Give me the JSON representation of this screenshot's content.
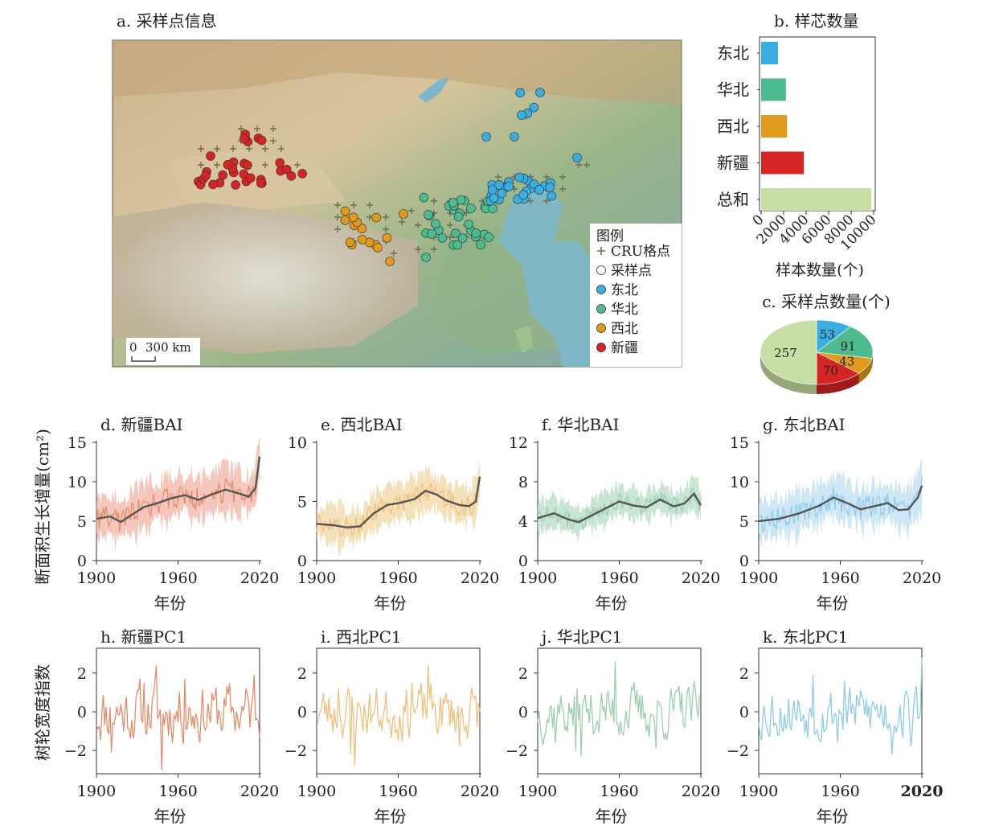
{
  "colors": {
    "ne": "#3aaee0",
    "nc": "#4dbb8e",
    "nw": "#e09a1c",
    "xj": "#d42424",
    "total": "#c7dfa4",
    "cru": "#6e6e52",
    "xj_light": "#f2b3a6",
    "nw_light": "#f2d7a2",
    "nc_light": "#b7dcc6",
    "ne_light": "#bfdff2",
    "xj_mid": "#e38d6a",
    "nw_mid": "#edc17e",
    "nc_mid": "#9ccfae",
    "ne_mid": "#8ecbe8",
    "mean": "#555555"
  },
  "map": {
    "title": "a. 采样点信息",
    "legend_title": "图例",
    "legend_items": [
      {
        "label": "CRU格点",
        "icon": "plus-icon",
        "color": "#6e6e52"
      },
      {
        "label": "采样点",
        "icon": "open-circle-icon",
        "color": "#ffffff"
      },
      {
        "label": "东北",
        "icon": "circle-icon",
        "color": "#3aaee0"
      },
      {
        "label": "华北",
        "icon": "circle-icon",
        "color": "#4dbb8e"
      },
      {
        "label": "西北",
        "icon": "circle-icon",
        "color": "#e09a1c"
      },
      {
        "label": "新疆",
        "icon": "circle-icon",
        "color": "#d42424"
      }
    ],
    "scale_bar": {
      "zero": "0",
      "label": "300 km"
    }
  },
  "chart_data": [
    {
      "type": "bar",
      "orientation": "horizontal",
      "title": "b. 样芯数量",
      "categories": [
        "东北",
        "华北",
        "西北",
        "新疆",
        "总和"
      ],
      "values": [
        1500,
        2200,
        2300,
        3800,
        9800
      ],
      "xlabel": "样本数量(个)",
      "xlim": [
        0,
        10000
      ],
      "xticks": [
        "0",
        "2000",
        "4000",
        "6000",
        "8000",
        "10000"
      ],
      "colors": [
        "#3aaee0",
        "#4dbb8e",
        "#e09a1c",
        "#d42424",
        "#c7dfa4"
      ]
    },
    {
      "type": "pie",
      "title": "c. 采样点数量(个)",
      "categories": [
        "东北",
        "华北",
        "西北",
        "新疆",
        "总和"
      ],
      "values": [
        53,
        91,
        43,
        70,
        257
      ],
      "labels": [
        "53",
        "91",
        "43",
        "70",
        "257"
      ],
      "colors": [
        "#3aaee0",
        "#4dbb8e",
        "#e09a1c",
        "#d42424",
        "#c7dfa4"
      ]
    },
    {
      "type": "line",
      "title": "d. 新疆BAI",
      "ylabel": "断面积生长增量(cm²)",
      "xlabel": "年份",
      "xlim": [
        1900,
        2020
      ],
      "ylim": [
        0,
        15
      ],
      "xticks": [
        "1900",
        "1960",
        "2020"
      ],
      "yticks": [
        "0",
        "5",
        "10",
        "15"
      ],
      "mean_keys": [
        [
          1900,
          5.3
        ],
        [
          1910,
          5.6
        ],
        [
          1918,
          4.9
        ],
        [
          1925,
          5.7
        ],
        [
          1935,
          6.8
        ],
        [
          1945,
          7.3
        ],
        [
          1955,
          7.9
        ],
        [
          1965,
          8.3
        ],
        [
          1975,
          7.7
        ],
        [
          1985,
          8.4
        ],
        [
          1995,
          9.0
        ],
        [
          2005,
          8.5
        ],
        [
          2012,
          8.1
        ],
        [
          2017,
          9.2
        ],
        [
          2020,
          13.2
        ]
      ],
      "band_width": 2.8
    },
    {
      "type": "line",
      "title": "e. 西北BAI",
      "xlabel": "年份",
      "xlim": [
        1900,
        2020
      ],
      "ylim": [
        0,
        10
      ],
      "xticks": [
        "1900",
        "1960",
        "2020"
      ],
      "yticks": [
        "0",
        "5",
        "10"
      ],
      "mean_keys": [
        [
          1900,
          3.1
        ],
        [
          1912,
          3.0
        ],
        [
          1922,
          2.8
        ],
        [
          1932,
          2.9
        ],
        [
          1942,
          4.0
        ],
        [
          1952,
          4.7
        ],
        [
          1962,
          4.9
        ],
        [
          1972,
          5.2
        ],
        [
          1980,
          5.9
        ],
        [
          1988,
          5.6
        ],
        [
          1995,
          5.1
        ],
        [
          2005,
          4.7
        ],
        [
          2012,
          4.6
        ],
        [
          2017,
          5.0
        ],
        [
          2020,
          7.1
        ]
      ],
      "band_width": 1.6
    },
    {
      "type": "line",
      "title": "f. 华北BAI",
      "xlabel": "年份",
      "xlim": [
        1900,
        2020
      ],
      "ylim": [
        0,
        12
      ],
      "xticks": [
        "1900",
        "1960",
        "2020"
      ],
      "yticks": [
        "0",
        "4",
        "8",
        "12"
      ],
      "mean_keys": [
        [
          1900,
          4.3
        ],
        [
          1912,
          4.8
        ],
        [
          1922,
          4.2
        ],
        [
          1930,
          3.9
        ],
        [
          1940,
          4.6
        ],
        [
          1950,
          5.3
        ],
        [
          1960,
          6.0
        ],
        [
          1970,
          5.6
        ],
        [
          1980,
          5.4
        ],
        [
          1990,
          6.2
        ],
        [
          2000,
          5.5
        ],
        [
          2008,
          5.8
        ],
        [
          2015,
          6.8
        ],
        [
          2020,
          5.6
        ]
      ],
      "band_width": 1.6
    },
    {
      "type": "line",
      "title": "g. 东北BAI",
      "xlabel": "年份",
      "xlim": [
        1900,
        2020
      ],
      "ylim": [
        0,
        15
      ],
      "xticks": [
        "1900",
        "1960",
        "2020"
      ],
      "yticks": [
        "0",
        "5",
        "10",
        "15"
      ],
      "mean_keys": [
        [
          1900,
          5.0
        ],
        [
          1915,
          5.3
        ],
        [
          1930,
          6.0
        ],
        [
          1945,
          7.0
        ],
        [
          1955,
          8.0
        ],
        [
          1965,
          7.3
        ],
        [
          1975,
          6.5
        ],
        [
          1985,
          6.9
        ],
        [
          1995,
          7.3
        ],
        [
          2003,
          6.4
        ],
        [
          2010,
          6.5
        ],
        [
          2017,
          8.0
        ],
        [
          2020,
          9.5
        ]
      ],
      "band_width": 2.8
    },
    {
      "type": "line",
      "title": "h. 新疆PC1",
      "ylabel": "树轮宽度指数",
      "xlabel": "年份",
      "xlim": [
        1900,
        2020
      ],
      "ylim": [
        -3.2,
        3.2
      ],
      "xticks": [
        "1900",
        "1960",
        "2020"
      ],
      "yticks": [
        "−2",
        "0",
        "2"
      ],
      "seed": 11,
      "amp": 1.0,
      "extremes": [
        [
          1944,
          2.4
        ],
        [
          1948,
          -3.0
        ],
        [
          1935,
          1.5
        ],
        [
          1911,
          -2.1
        ],
        [
          1965,
          1.7
        ],
        [
          2016,
          1.9
        ],
        [
          2020,
          -1.3
        ]
      ]
    },
    {
      "type": "line",
      "title": "i. 西北PC1",
      "xlabel": "年份",
      "xlim": [
        1900,
        2020
      ],
      "ylim": [
        -3.2,
        3.2
      ],
      "xticks": [
        "1900",
        "1960",
        "2020"
      ],
      "yticks": [
        "−2",
        "0",
        "2"
      ],
      "seed": 23,
      "amp": 0.9,
      "extremes": [
        [
          1928,
          -2.8
        ],
        [
          1925,
          -2.2
        ],
        [
          1982,
          2.4
        ],
        [
          1916,
          1.2
        ],
        [
          1970,
          1.5
        ],
        [
          2005,
          -1.8
        ]
      ]
    },
    {
      "type": "line",
      "title": "j. 华北PC1",
      "xlabel": "年份",
      "xlim": [
        1900,
        2020
      ],
      "ylim": [
        -3.2,
        3.2
      ],
      "xticks": [
        "1900",
        "1960",
        "2020"
      ],
      "yticks": [
        "−2",
        "0",
        "2"
      ],
      "seed": 37,
      "amp": 0.9,
      "extremes": [
        [
          1932,
          -2.3
        ],
        [
          1928,
          -2.0
        ],
        [
          1957,
          2.6
        ],
        [
          1913,
          -1.6
        ],
        [
          1987,
          -1.9
        ],
        [
          2015,
          1.6
        ]
      ]
    },
    {
      "type": "line",
      "title": "k. 东北PC1",
      "xlabel": "年份",
      "xlim": [
        1900,
        2020
      ],
      "ylim": [
        -3.2,
        3.2
      ],
      "xticks": [
        "1900",
        "1960",
        "2020"
      ],
      "yticks": [
        "−2",
        "0",
        "2"
      ],
      "seed": 53,
      "amp": 0.9,
      "extremes": [
        [
          1940,
          1.9
        ],
        [
          1908,
          -1.3
        ],
        [
          1958,
          -1.6
        ],
        [
          1998,
          -2.2
        ],
        [
          2012,
          -1.8
        ],
        [
          2020,
          2.8
        ],
        [
          1963,
          1.6
        ]
      ]
    }
  ]
}
